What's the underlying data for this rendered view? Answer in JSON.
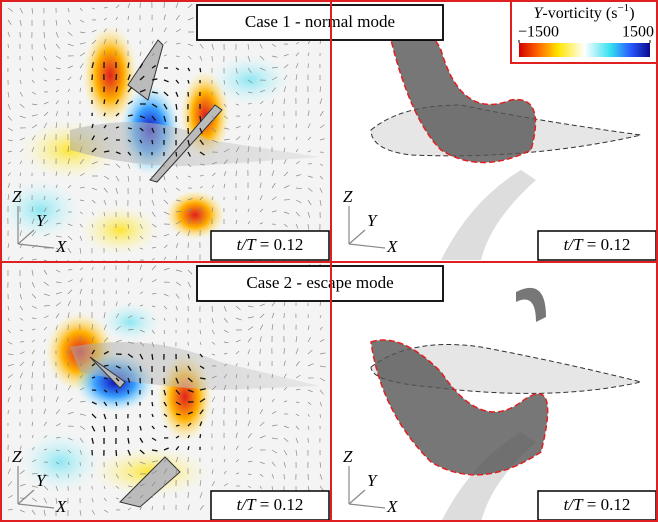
{
  "colorbar": {
    "title": {
      "symbol": "Y",
      "text": "-vorticity (s",
      "exponent": "−1",
      "close": ")"
    },
    "ticks": [
      {
        "value": -1500,
        "label": "−1500"
      },
      {
        "value": 1500,
        "label": "1500"
      }
    ]
  },
  "rows": [
    {
      "title": "Case 1 - normal mode",
      "panels": [
        {
          "axes": [
            "Z",
            "Y",
            "X"
          ],
          "time": {
            "symbol": "t/T",
            "value": "= 0.12"
          }
        },
        {
          "axes": [
            "Z",
            "Y",
            "X"
          ],
          "time": {
            "symbol": "t/T",
            "value": "= 0.12"
          }
        }
      ]
    },
    {
      "title": "Case 2 - escape mode",
      "panels": [
        {
          "axes": [
            "Z",
            "Y",
            "X"
          ],
          "time": {
            "symbol": "t/T",
            "value": "= 0.12"
          }
        },
        {
          "axes": [
            "Z",
            "Y",
            "X"
          ],
          "time": {
            "symbol": "t/T",
            "value": "= 0.12"
          }
        }
      ]
    }
  ]
}
